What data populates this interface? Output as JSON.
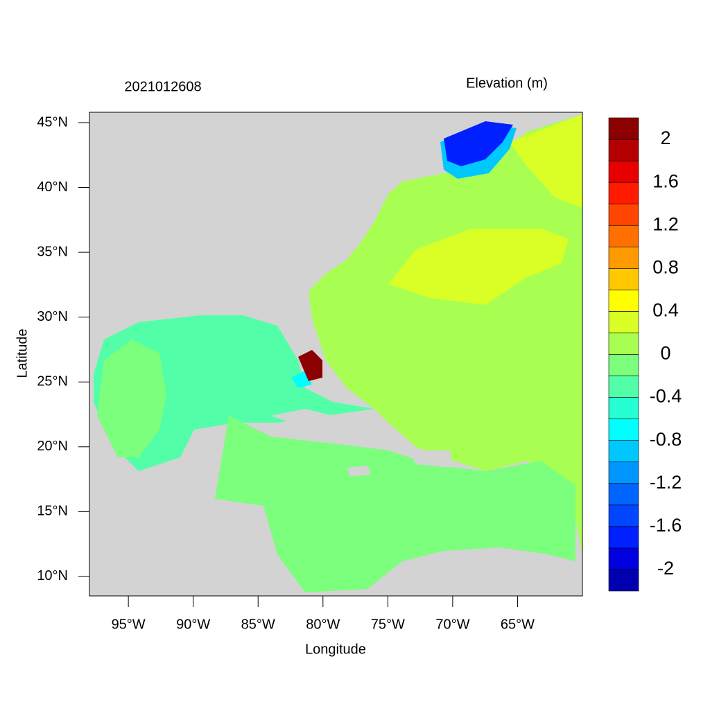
{
  "chart_data": {
    "type": "contour-map",
    "title": "2021012608",
    "colorbar_title": "Elevation (m)",
    "x_label": "Longitude",
    "y_label": "Latitude",
    "xlim": [
      -98,
      -60
    ],
    "ylim": [
      8.5,
      45.8
    ],
    "xticks": [
      {
        "value": -95,
        "label": "95°W"
      },
      {
        "value": -90,
        "label": "90°W"
      },
      {
        "value": -85,
        "label": "85°W"
      },
      {
        "value": -80,
        "label": "80°W"
      },
      {
        "value": -75,
        "label": "75°W"
      },
      {
        "value": -70,
        "label": "70°W"
      },
      {
        "value": -65,
        "label": "65°W"
      }
    ],
    "yticks": [
      {
        "value": 10,
        "label": "10°N"
      },
      {
        "value": 15,
        "label": "15°N"
      },
      {
        "value": 20,
        "label": "20°N"
      },
      {
        "value": 25,
        "label": "25°N"
      },
      {
        "value": 30,
        "label": "30°N"
      },
      {
        "value": 35,
        "label": "35°N"
      },
      {
        "value": 40,
        "label": "40°N"
      },
      {
        "value": 45,
        "label": "45°N"
      }
    ],
    "levels": [
      -2.2,
      -2,
      -1.8,
      -1.6,
      -1.4,
      -1.2,
      -1,
      -0.8,
      -0.6,
      -0.4,
      -0.2,
      0,
      0.2,
      0.4,
      0.6,
      0.8,
      1,
      1.2,
      1.4,
      1.6,
      1.8,
      2,
      2.2
    ],
    "colors": [
      "#0000b0",
      "#0000e0",
      "#0020ff",
      "#0046ff",
      "#0064ff",
      "#0096ff",
      "#00c8ff",
      "#00ffff",
      "#26ffd4",
      "#52ffa8",
      "#7cff7c",
      "#a8ff52",
      "#d9ff26",
      "#ffff00",
      "#ffc800",
      "#ff9a00",
      "#ff7000",
      "#ff4500",
      "#ff1a00",
      "#e60000",
      "#b40000",
      "#8b0000"
    ],
    "colorbar_ticks": [
      -2,
      -1.6,
      -1.2,
      -0.8,
      -0.4,
      0,
      0.4,
      0.8,
      1.2,
      1.6,
      2
    ],
    "land_color": "#d3d3d3"
  }
}
